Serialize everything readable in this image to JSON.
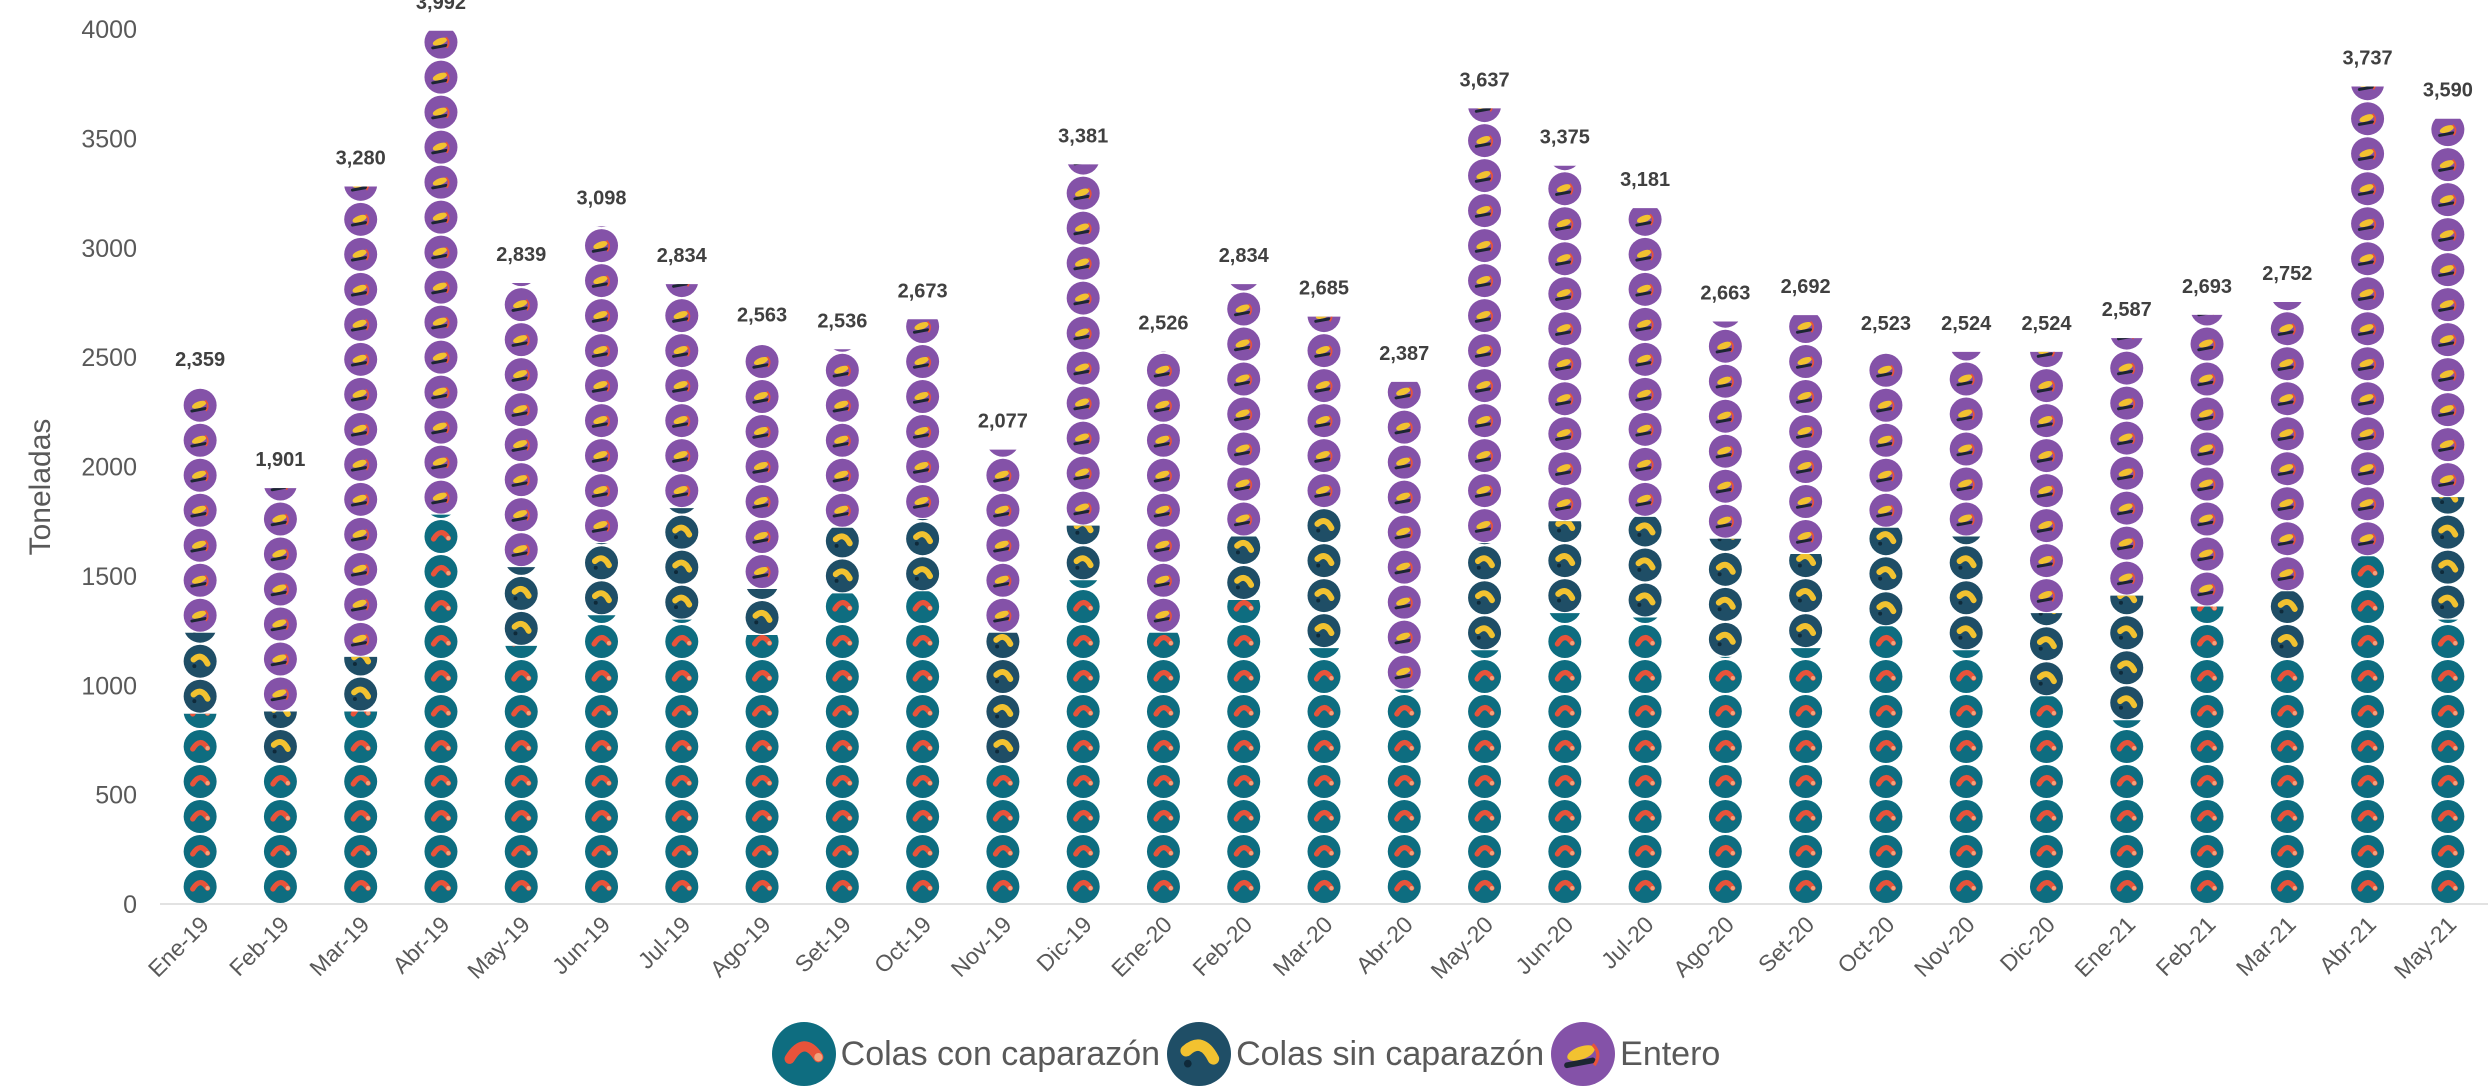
{
  "chart_data": {
    "type": "bar",
    "stacked": true,
    "pictograph": true,
    "ylabel": "Toneladas",
    "ylim": [
      0,
      4000
    ],
    "yticks": [
      "0",
      "500",
      "1000",
      "1500",
      "2000",
      "2500",
      "3000",
      "3500",
      "4000"
    ],
    "grid": false,
    "legend_position": "bottom",
    "categories": [
      "Ene-19",
      "Feb-19",
      "Mar-19",
      "Abr-19",
      "May-19",
      "Jun-19",
      "Jul-19",
      "Ago-19",
      "Set-19",
      "Oct-19",
      "Nov-19",
      "Dic-19",
      "Ene-20",
      "Feb-20",
      "Mar-20",
      "Abr-20",
      "May-20",
      "Jun-20",
      "Jul-20",
      "Ago-20",
      "Set-20",
      "Oct-20",
      "Nov-20",
      "Dic-20",
      "Ene-21",
      "Feb-21",
      "Mar-21",
      "Abr-21",
      "May-21"
    ],
    "totals": [
      2359,
      1901,
      3280,
      3992,
      2839,
      3098,
      2834,
      2563,
      2536,
      2673,
      2077,
      3381,
      2526,
      2834,
      2685,
      2387,
      3637,
      3375,
      3181,
      2663,
      2692,
      2523,
      2524,
      2524,
      2587,
      2693,
      2752,
      3737,
      3590
    ],
    "total_labels": [
      "2,359",
      "1,901",
      "3,280",
      "3,992",
      "2,839",
      "3,098",
      "2,834",
      "2,563",
      "2,536",
      "2,673",
      "2,077",
      "3,381",
      "2,526",
      "2,834",
      "2,685",
      "2,387",
      "3,637",
      "3,375",
      "3,181",
      "2,663",
      "2,692",
      "2,523",
      "2,524",
      "2,524",
      "2,587",
      "2,693",
      "2,752",
      "3,737",
      "3,590"
    ],
    "series": [
      {
        "name": "Colas con caparazón",
        "icon": "shrimp-tail-shell-icon",
        "color": "#0e6d80",
        "values": [
          870,
          640,
          880,
          1780,
          1180,
          1320,
          1300,
          1230,
          1420,
          1430,
          640,
          1480,
          1240,
          1390,
          1170,
          980,
          1160,
          1330,
          1310,
          1130,
          1170,
          1270,
          1160,
          950,
          840,
          1360,
          1120,
          1590,
          1300
        ]
      },
      {
        "name": "Colas sin caparazón",
        "icon": "shrimp-tail-peeled-icon",
        "color": "#1f4e66",
        "values": [
          370,
          240,
          250,
          0,
          360,
          330,
          510,
          210,
          300,
          330,
          600,
          250,
          0,
          290,
          640,
          0,
          490,
          420,
          460,
          540,
          430,
          450,
          520,
          380,
          570,
          0,
          310,
          0,
          560
        ]
      },
      {
        "name": "Entero",
        "icon": "whole-shrimp-icon",
        "color": "#8452a8",
        "values": [
          1119,
          1021,
          2150,
          2212,
          1299,
          1448,
          1024,
          1123,
          816,
          913,
          837,
          1651,
          1286,
          1154,
          875,
          1407,
          1987,
          1625,
          1411,
          993,
          1092,
          803,
          844,
          1194,
          1177,
          1333,
          1322,
          2147,
          1730
        ]
      }
    ]
  }
}
